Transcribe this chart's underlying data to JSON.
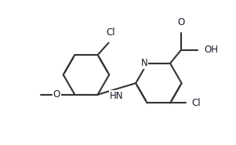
{
  "bg": "#ffffff",
  "lc": "#333333",
  "tc": "#1a1a2e",
  "lw": 1.5,
  "dbo": 0.014,
  "fs": 8.5,
  "figsize": [
    3.01,
    1.85
  ],
  "dpi": 100,
  "labels": {
    "Cl1": "Cl",
    "Cl2": "Cl",
    "N": "N",
    "HN": "HN",
    "O_carbonyl": "O",
    "OH": "OH",
    "O_methoxy": "O",
    "methyl": ""
  }
}
